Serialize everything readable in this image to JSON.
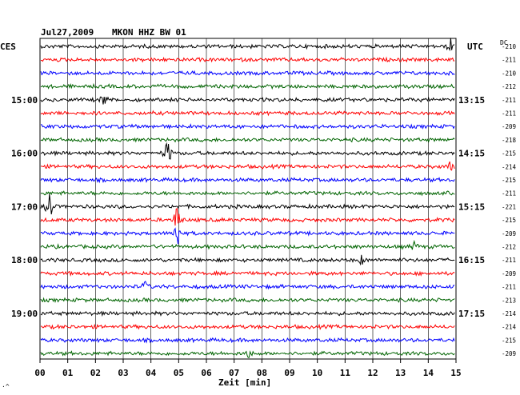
{
  "header": {
    "date": "Jul27,2009",
    "station": "MKON HHZ BW 01",
    "left_tz": "CES",
    "right_tz": "UTC",
    "dc_label": "DC"
  },
  "footer": {
    "xlabel": "Zeit [min]",
    "corner_mark": "·^"
  },
  "colors": {
    "cycle": [
      "#000000",
      "#ff0000",
      "#0000ff",
      "#006400"
    ],
    "grid": "#000000"
  },
  "chart_data": {
    "type": "line",
    "title": "Jul27,2009    MKON HHZ BW 01",
    "xlabel": "Zeit [min]",
    "x_ticks": [
      "00",
      "01",
      "02",
      "03",
      "04",
      "05",
      "06",
      "07",
      "08",
      "09",
      "10",
      "11",
      "12",
      "13",
      "14",
      "15"
    ],
    "xlim": [
      0,
      15
    ],
    "left_hour_labels": [
      "15:00",
      "16:00",
      "17:00",
      "18:00",
      "19:00"
    ],
    "right_utc_labels": [
      "13:15",
      "14:15",
      "15:15",
      "16:15",
      "17:15"
    ],
    "trace_count": 24,
    "dc_values": [
      "-210",
      "-211",
      "-210",
      "-212",
      "-211",
      "-211",
      "-209",
      "-218",
      "-215",
      "-214",
      "-215",
      "-211",
      "-221",
      "-215",
      "-209",
      "-212",
      "-211",
      "-209",
      "-211",
      "-213",
      "-214",
      "-214",
      "-215",
      "-209"
    ],
    "events": [
      {
        "trace": 0,
        "minute": 14.8,
        "amplitude": "medium"
      },
      {
        "trace": 4,
        "minute": 2.3,
        "amplitude": "medium"
      },
      {
        "trace": 8,
        "minute": 4.6,
        "amplitude": "large"
      },
      {
        "trace": 9,
        "minute": 14.8,
        "amplitude": "small"
      },
      {
        "trace": 12,
        "minute": 0.35,
        "amplitude": "large"
      },
      {
        "trace": 13,
        "minute": 4.95,
        "amplitude": "large"
      },
      {
        "trace": 14,
        "minute": 4.95,
        "amplitude": "large"
      },
      {
        "trace": 15,
        "minute": 13.5,
        "amplitude": "small"
      },
      {
        "trace": 16,
        "minute": 11.6,
        "amplitude": "small"
      },
      {
        "trace": 18,
        "minute": 3.8,
        "amplitude": "small"
      },
      {
        "trace": 23,
        "minute": 7.5,
        "amplitude": "small"
      }
    ]
  }
}
